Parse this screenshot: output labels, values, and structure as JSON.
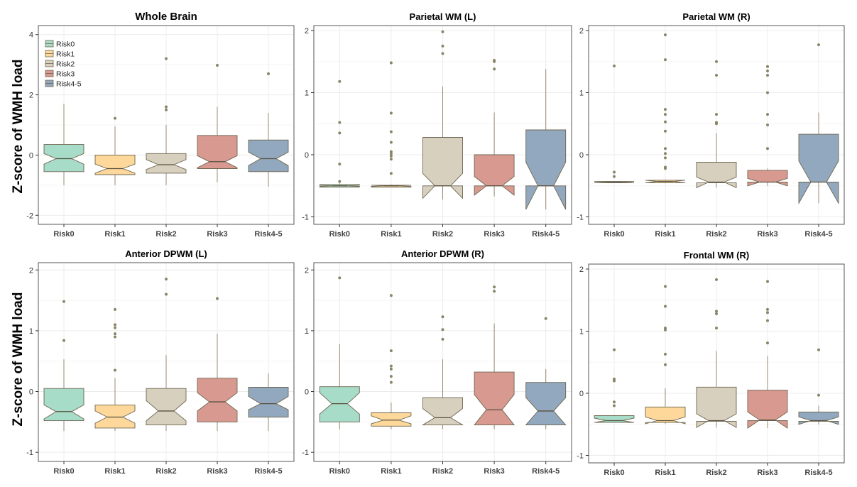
{
  "figure": {
    "ylabel_top": "Z-score of WMH load",
    "ylabel_bottom": "Z-score of WMH load"
  },
  "chart_data": [
    {
      "type": "boxplot",
      "notched": true,
      "title": "Whole Brain",
      "ylabel": "Z-score of WMH load",
      "ylim": [
        -2.3,
        4.3
      ],
      "yticks": [
        -2,
        0,
        2,
        4
      ],
      "categories": [
        "Risk0",
        "Risk1",
        "Risk2",
        "Risk3",
        "Risk4-5"
      ],
      "legend": {
        "position": "top-left",
        "entries": [
          "Risk0",
          "Risk1",
          "Risk2",
          "Risk3",
          "Risk4-5"
        ]
      },
      "boxes": [
        {
          "min": -1.0,
          "q1": -0.55,
          "median": -0.12,
          "q3": 0.35,
          "max": 1.7,
          "notch": [
            -0.3,
            0.05
          ],
          "outliers": []
        },
        {
          "min": -1.0,
          "q1": -0.65,
          "median": -0.45,
          "q3": 0.0,
          "max": 0.95,
          "notch": [
            -0.6,
            -0.3
          ],
          "outliers": [
            1.22
          ]
        },
        {
          "min": -1.0,
          "q1": -0.6,
          "median": -0.32,
          "q3": 0.05,
          "max": 1.0,
          "notch": [
            -0.48,
            -0.15
          ],
          "outliers": [
            3.2,
            1.6,
            1.5
          ]
        },
        {
          "min": -0.9,
          "q1": -0.45,
          "median": -0.22,
          "q3": 0.65,
          "max": 1.6,
          "notch": [
            -0.42,
            -0.02
          ],
          "outliers": [
            2.98
          ]
        },
        {
          "min": -1.05,
          "q1": -0.55,
          "median": -0.12,
          "q3": 0.5,
          "max": 1.4,
          "notch": [
            -0.35,
            0.1
          ],
          "outliers": [
            2.7
          ]
        }
      ]
    },
    {
      "type": "boxplot",
      "notched": true,
      "title": "Parietal WM (L)",
      "ylabel": "Z-score of WMH load",
      "ylim": [
        -1.12,
        2.08
      ],
      "yticks": [
        -1,
        0,
        1,
        2
      ],
      "categories": [
        "Risk0",
        "Risk1",
        "Risk2",
        "Risk3",
        "Risk4-5"
      ],
      "boxes": [
        {
          "min": -0.52,
          "q1": -0.52,
          "median": -0.5,
          "q3": -0.48,
          "max": -0.46,
          "notch": [
            -0.51,
            -0.49
          ],
          "outliers": [
            1.18,
            0.52,
            0.35,
            -0.15,
            -0.43
          ]
        },
        {
          "min": -0.52,
          "q1": -0.52,
          "median": -0.5,
          "q3": -0.49,
          "max": -0.48,
          "notch": [
            -0.51,
            -0.49
          ],
          "outliers": [
            1.48,
            0.67,
            0.37,
            0.2,
            0.05,
            0.02,
            -0.02,
            -0.07,
            -0.3
          ]
        },
        {
          "min": -0.72,
          "q1": -0.5,
          "median": -0.5,
          "q3": 0.28,
          "max": 1.1,
          "notch": [
            -0.7,
            -0.3
          ],
          "outliers": [
            1.98,
            1.75,
            1.63
          ]
        },
        {
          "min": -0.67,
          "q1": -0.5,
          "median": -0.5,
          "q3": 0.0,
          "max": 0.68,
          "notch": [
            -0.65,
            -0.35
          ],
          "outliers": [
            1.52,
            1.5,
            1.38
          ]
        },
        {
          "min": -0.88,
          "q1": -0.5,
          "median": -0.5,
          "q3": 0.4,
          "max": 1.38,
          "notch": [
            -0.88,
            -0.12
          ],
          "outliers": []
        }
      ]
    },
    {
      "type": "boxplot",
      "notched": true,
      "title": "Parietal WM (R)",
      "ylabel": "Z-score of WMH load",
      "ylim": [
        -1.12,
        2.08
      ],
      "yticks": [
        -1,
        0,
        1,
        2
      ],
      "categories": [
        "Risk0",
        "Risk1",
        "Risk2",
        "Risk3",
        "Risk4-5"
      ],
      "boxes": [
        {
          "min": -0.45,
          "q1": -0.45,
          "median": -0.44,
          "q3": -0.43,
          "max": -0.43,
          "notch": [
            -0.45,
            -0.43
          ],
          "outliers": [
            1.43,
            -0.28,
            -0.35
          ]
        },
        {
          "min": -0.46,
          "q1": -0.45,
          "median": -0.43,
          "q3": -0.41,
          "max": -0.4,
          "notch": [
            -0.45,
            -0.41
          ],
          "outliers": [
            1.93,
            1.53,
            0.73,
            0.65,
            0.53,
            0.38,
            0.1,
            0.02,
            -0.05,
            -0.2,
            -0.22
          ]
        },
        {
          "min": -0.53,
          "q1": -0.45,
          "median": -0.44,
          "q3": -0.12,
          "max": 0.35,
          "notch": [
            -0.53,
            -0.36
          ],
          "outliers": [
            1.5,
            1.28,
            0.65,
            0.52,
            0.5
          ]
        },
        {
          "min": -0.5,
          "q1": -0.44,
          "median": -0.44,
          "q3": -0.25,
          "max": -0.22,
          "notch": [
            -0.5,
            -0.38
          ],
          "outliers": [
            1.42,
            1.35,
            1.28,
            1.0,
            0.65,
            0.48,
            0.1
          ]
        },
        {
          "min": -0.78,
          "q1": -0.44,
          "median": -0.44,
          "q3": 0.33,
          "max": 0.68,
          "notch": [
            -0.78,
            -0.1
          ],
          "outliers": [
            1.77
          ]
        }
      ]
    },
    {
      "type": "boxplot",
      "notched": true,
      "title": "Anterior DPWM (L)",
      "ylabel": "Z-score of WMH load",
      "ylim": [
        -1.15,
        2.12
      ],
      "yticks": [
        -1,
        0,
        1,
        2
      ],
      "categories": [
        "Risk0",
        "Risk1",
        "Risk2",
        "Risk3",
        "Risk4-5"
      ],
      "boxes": [
        {
          "min": -0.65,
          "q1": -0.48,
          "median": -0.33,
          "q3": 0.05,
          "max": 0.53,
          "notch": [
            -0.45,
            -0.22
          ],
          "outliers": [
            1.48,
            0.84
          ]
        },
        {
          "min": -0.65,
          "q1": -0.6,
          "median": -0.42,
          "q3": -0.22,
          "max": 0.22,
          "notch": [
            -0.52,
            -0.32
          ],
          "outliers": [
            1.35,
            1.1,
            1.05,
            0.95,
            0.9,
            0.35
          ]
        },
        {
          "min": -0.65,
          "q1": -0.55,
          "median": -0.32,
          "q3": 0.05,
          "max": 0.6,
          "notch": [
            -0.48,
            -0.15
          ],
          "outliers": [
            1.85,
            1.6
          ]
        },
        {
          "min": -0.65,
          "q1": -0.5,
          "median": -0.17,
          "q3": 0.22,
          "max": 0.95,
          "notch": [
            -0.32,
            -0.02
          ],
          "outliers": [
            1.53
          ]
        },
        {
          "min": -0.65,
          "q1": -0.42,
          "median": -0.2,
          "q3": 0.07,
          "max": 0.3,
          "notch": [
            -0.3,
            -0.08
          ],
          "outliers": []
        }
      ]
    },
    {
      "type": "boxplot",
      "notched": true,
      "title": "Anterior DPWM (R)",
      "ylabel": "Z-score of WMH load",
      "ylim": [
        -1.15,
        2.12
      ],
      "yticks": [
        -1,
        0,
        1,
        2
      ],
      "categories": [
        "Risk0",
        "Risk1",
        "Risk2",
        "Risk3",
        "Risk4-5"
      ],
      "boxes": [
        {
          "min": -0.62,
          "q1": -0.5,
          "median": -0.2,
          "q3": 0.08,
          "max": 0.78,
          "notch": [
            -0.37,
            -0.02
          ],
          "outliers": [
            1.87
          ]
        },
        {
          "min": -0.62,
          "q1": -0.57,
          "median": -0.47,
          "q3": -0.35,
          "max": -0.18,
          "notch": [
            -0.53,
            -0.4
          ],
          "outliers": [
            1.58,
            0.67,
            0.42,
            0.37,
            0.25,
            0.15
          ]
        },
        {
          "min": -0.62,
          "q1": -0.55,
          "median": -0.43,
          "q3": -0.1,
          "max": 0.53,
          "notch": [
            -0.55,
            -0.28
          ],
          "outliers": [
            1.23,
            1.02,
            0.86
          ]
        },
        {
          "min": -0.62,
          "q1": -0.55,
          "median": -0.3,
          "q3": 0.32,
          "max": 1.12,
          "notch": [
            -0.55,
            -0.05
          ],
          "outliers": [
            1.72,
            1.65
          ]
        },
        {
          "min": -0.62,
          "q1": -0.55,
          "median": -0.32,
          "q3": 0.15,
          "max": 0.37,
          "notch": [
            -0.55,
            -0.1
          ],
          "outliers": [
            1.2
          ]
        }
      ]
    },
    {
      "type": "boxplot",
      "notched": true,
      "title": "Frontal WM (R)",
      "ylabel": "Z-score of WMH load",
      "ylim": [
        -1.12,
        2.08
      ],
      "yticks": [
        -1,
        0,
        1,
        2
      ],
      "categories": [
        "Risk0",
        "Risk1",
        "Risk2",
        "Risk3",
        "Risk4-5"
      ],
      "boxes": [
        {
          "min": -0.47,
          "q1": -0.47,
          "median": -0.44,
          "q3": -0.36,
          "max": -0.36,
          "notch": [
            -0.47,
            -0.4
          ],
          "outliers": [
            0.7,
            0.23,
            0.2,
            -0.14,
            -0.2
          ]
        },
        {
          "min": -0.49,
          "q1": -0.47,
          "median": -0.44,
          "q3": -0.22,
          "max": 0.08,
          "notch": [
            -0.49,
            -0.38
          ],
          "outliers": [
            1.72,
            1.4,
            1.05,
            1.02,
            0.63,
            0.46
          ]
        },
        {
          "min": -0.55,
          "q1": -0.45,
          "median": -0.44,
          "q3": 0.1,
          "max": 0.68,
          "notch": [
            -0.55,
            -0.33
          ],
          "outliers": [
            1.83,
            1.32,
            1.28,
            1.05
          ]
        },
        {
          "min": -0.56,
          "q1": -0.44,
          "median": -0.43,
          "q3": 0.05,
          "max": 0.6,
          "notch": [
            -0.56,
            -0.3
          ],
          "outliers": [
            1.8,
            1.35,
            1.3,
            1.17,
            0.81
          ]
        },
        {
          "min": -0.5,
          "q1": -0.45,
          "median": -0.44,
          "q3": -0.3,
          "max": -0.2,
          "notch": [
            -0.5,
            -0.38
          ],
          "outliers": [
            0.7,
            -0.03
          ]
        }
      ]
    }
  ],
  "colors": {
    "series_fill": [
      "#a6dcc8",
      "#fdd89a",
      "#d8d0bf",
      "#d89a90",
      "#92a8be"
    ],
    "box_stroke": "#6e6650",
    "whisker": "#9a8a70",
    "outlier": "#8a8568",
    "grid": "#ececec",
    "frame": "#555555"
  }
}
